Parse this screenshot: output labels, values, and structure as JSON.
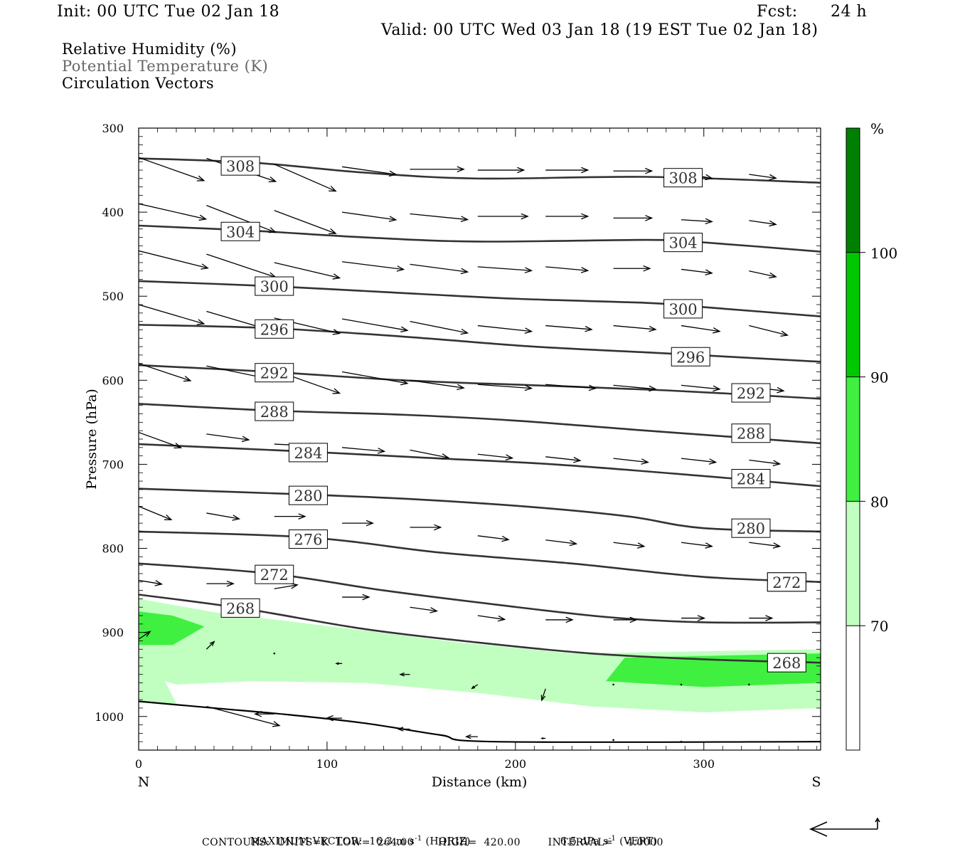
{
  "header": {
    "init": "Init: 00 UTC Tue 02 Jan 18",
    "fcst_label": "Fcst:",
    "fcst_value": "24 h",
    "valid": "Valid: 00 UTC Wed 03 Jan 18 (19 EST Tue 02 Jan 18)"
  },
  "fields": {
    "rh": "Relative Humidity (%)",
    "theta": "Potential Temperature (K)",
    "vectors": "Circulation Vectors"
  },
  "colors": {
    "contour": "#333333",
    "vector": "#000000",
    "rh_70": "#c0ffc0",
    "rh_80": "#40f040",
    "rh_90": "#00c800",
    "rh_100": "#008000"
  },
  "chart_data": {
    "type": "cross-section",
    "xlabel": "Distance (km)",
    "ylabel": "Pressure (hPa)",
    "xlim": [
      0,
      362
    ],
    "ylim": [
      1040,
      300
    ],
    "x_ticks": [
      "0",
      "100",
      "200",
      "300"
    ],
    "y_ticks": [
      "300",
      "400",
      "500",
      "600",
      "700",
      "800",
      "900",
      "1000"
    ],
    "left_end_label": "N",
    "right_end_label": "S",
    "terrain": [
      [
        0,
        982
      ],
      [
        40,
        990
      ],
      [
        80,
        998
      ],
      [
        120,
        1008
      ],
      [
        160,
        1022
      ],
      [
        190,
        1030
      ],
      [
        362,
        1030
      ]
    ],
    "theta_contours": [
      {
        "level": 308,
        "label": "308",
        "points": [
          [
            0,
            336
          ],
          [
            60,
            341
          ],
          [
            120,
            353
          ],
          [
            180,
            360
          ],
          [
            270,
            358
          ],
          [
            362,
            365
          ]
        ],
        "label_at": [
          [
            54,
            345
          ],
          [
            289,
            359
          ]
        ]
      },
      {
        "level": 304,
        "label": "304",
        "points": [
          [
            0,
            416
          ],
          [
            60,
            422
          ],
          [
            120,
            430
          ],
          [
            180,
            435
          ],
          [
            270,
            433
          ],
          [
            300,
            436
          ],
          [
            362,
            447
          ]
        ],
        "label_at": [
          [
            54,
            423
          ],
          [
            289,
            436
          ]
        ]
      },
      {
        "level": 300,
        "label": "300",
        "points": [
          [
            0,
            482
          ],
          [
            70,
            488
          ],
          [
            130,
            495
          ],
          [
            200,
            503
          ],
          [
            270,
            508
          ],
          [
            300,
            513
          ],
          [
            362,
            524
          ]
        ],
        "label_at": [
          [
            72,
            488
          ],
          [
            289,
            515
          ]
        ]
      },
      {
        "level": 296,
        "label": "296",
        "points": [
          [
            0,
            534
          ],
          [
            70,
            538
          ],
          [
            140,
            548
          ],
          [
            210,
            560
          ],
          [
            280,
            568
          ],
          [
            362,
            578
          ]
        ],
        "label_at": [
          [
            72,
            539
          ],
          [
            293,
            572
          ]
        ]
      },
      {
        "level": 292,
        "label": "292",
        "points": [
          [
            0,
            582
          ],
          [
            70,
            590
          ],
          [
            140,
            600
          ],
          [
            210,
            606
          ],
          [
            280,
            612
          ],
          [
            362,
            622
          ]
        ],
        "label_at": [
          [
            72,
            591
          ],
          [
            325,
            615
          ]
        ]
      },
      {
        "level": 288,
        "label": "288",
        "points": [
          [
            0,
            628
          ],
          [
            70,
            636
          ],
          [
            140,
            641
          ],
          [
            200,
            648
          ],
          [
            270,
            660
          ],
          [
            362,
            675
          ]
        ],
        "label_at": [
          [
            72,
            637
          ],
          [
            325,
            663
          ]
        ]
      },
      {
        "level": 284,
        "label": "284",
        "points": [
          [
            0,
            676
          ],
          [
            90,
            685
          ],
          [
            150,
            692
          ],
          [
            220,
            700
          ],
          [
            300,
            714
          ],
          [
            362,
            726
          ]
        ],
        "label_at": [
          [
            90,
            686
          ],
          [
            325,
            717
          ]
        ]
      },
      {
        "level": 280,
        "label": "280",
        "points": [
          [
            0,
            729
          ],
          [
            90,
            736
          ],
          [
            150,
            742
          ],
          [
            210,
            751
          ],
          [
            260,
            762
          ],
          [
            300,
            776
          ],
          [
            362,
            780
          ]
        ],
        "label_at": [
          [
            90,
            737
          ],
          [
            325,
            776
          ]
        ]
      },
      {
        "level": 276,
        "label": "276",
        "points": [
          [
            0,
            780
          ],
          [
            90,
            787
          ],
          [
            160,
            805
          ],
          [
            230,
            818
          ],
          [
            300,
            834
          ],
          [
            362,
            840
          ]
        ],
        "label_at": [
          [
            90,
            789
          ],
          [
            344,
            840
          ]
        ]
      },
      {
        "level": 272,
        "label": "272",
        "points": [
          [
            0,
            818
          ],
          [
            70,
            830
          ],
          [
            130,
            850
          ],
          [
            190,
            867
          ],
          [
            250,
            882
          ],
          [
            300,
            888
          ],
          [
            362,
            888
          ]
        ],
        "label_at": [
          [
            72,
            831
          ],
          [
            344,
            840
          ]
        ]
      },
      {
        "level": 268,
        "label": "268",
        "points": [
          [
            0,
            855
          ],
          [
            54,
            871
          ],
          [
            120,
            896
          ],
          [
            180,
            912
          ],
          [
            240,
            925
          ],
          [
            300,
            932
          ],
          [
            362,
            936
          ]
        ],
        "label_at": [
          [
            54,
            871
          ],
          [
            344,
            936
          ]
        ]
      }
    ],
    "rh_bands": [
      {
        "range": [
          70,
          80
        ],
        "color": "#c0ffc0"
      },
      {
        "range": [
          80,
          90
        ],
        "color": "#40f040"
      },
      {
        "range": [
          90,
          100
        ],
        "color": "#00c800"
      },
      {
        "range": [
          100,
          110
        ],
        "color": "#008000"
      }
    ],
    "rh_70_region": [
      [
        0,
        860
      ],
      [
        40,
        876
      ],
      [
        110,
        895
      ],
      [
        170,
        912
      ],
      [
        230,
        925
      ],
      [
        362,
        920
      ],
      [
        362,
        990
      ],
      [
        300,
        995
      ],
      [
        240,
        988
      ],
      [
        180,
        972
      ],
      [
        120,
        960
      ],
      [
        60,
        958
      ],
      [
        20,
        962
      ],
      [
        14,
        958
      ],
      [
        20,
        985
      ],
      [
        0,
        982
      ]
    ],
    "rh_80_regions": [
      [
        [
          0,
          875
        ],
        [
          18,
          880
        ],
        [
          35,
          893
        ],
        [
          18,
          915
        ],
        [
          0,
          915
        ]
      ],
      [
        [
          258,
          930
        ],
        [
          362,
          925
        ],
        [
          362,
          960
        ],
        [
          300,
          965
        ],
        [
          248,
          958
        ]
      ]
    ],
    "colorbar": {
      "unit": "%",
      "levels": [
        "70",
        "80",
        "90",
        "100"
      ]
    },
    "vectors": [
      {
        "x": 0,
        "p": 335,
        "dx": 34,
        "dp": 12
      },
      {
        "x": 36,
        "p": 336,
        "dx": 36,
        "dp": 12
      },
      {
        "x": 72,
        "p": 343,
        "dx": 32,
        "dp": 14
      },
      {
        "x": 108,
        "p": 346,
        "dx": 28,
        "dp": 4
      },
      {
        "x": 144,
        "p": 349,
        "dx": 28,
        "dp": 0
      },
      {
        "x": 180,
        "p": 350,
        "dx": 24,
        "dp": 0
      },
      {
        "x": 216,
        "p": 350,
        "dx": 22,
        "dp": 0
      },
      {
        "x": 252,
        "p": 351,
        "dx": 20,
        "dp": 0
      },
      {
        "x": 288,
        "p": 353,
        "dx": 16,
        "dp": 3
      },
      {
        "x": 324,
        "p": 355,
        "dx": 14,
        "dp": 2
      },
      {
        "x": 0,
        "p": 390,
        "dx": 35,
        "dp": 8
      },
      {
        "x": 36,
        "p": 392,
        "dx": 36,
        "dp": 14
      },
      {
        "x": 72,
        "p": 398,
        "dx": 32,
        "dp": 12
      },
      {
        "x": 108,
        "p": 400,
        "dx": 28,
        "dp": 4
      },
      {
        "x": 144,
        "p": 402,
        "dx": 30,
        "dp": 3
      },
      {
        "x": 180,
        "p": 405,
        "dx": 26,
        "dp": 0
      },
      {
        "x": 216,
        "p": 405,
        "dx": 22,
        "dp": 0
      },
      {
        "x": 252,
        "p": 407,
        "dx": 20,
        "dp": 0
      },
      {
        "x": 288,
        "p": 409,
        "dx": 16,
        "dp": 1
      },
      {
        "x": 324,
        "p": 410,
        "dx": 14,
        "dp": 2
      },
      {
        "x": 0,
        "p": 446,
        "dx": 36,
        "dp": 9
      },
      {
        "x": 36,
        "p": 450,
        "dx": 36,
        "dp": 12
      },
      {
        "x": 72,
        "p": 460,
        "dx": 34,
        "dp": 8
      },
      {
        "x": 108,
        "p": 459,
        "dx": 32,
        "dp": 4
      },
      {
        "x": 144,
        "p": 462,
        "dx": 30,
        "dp": 4
      },
      {
        "x": 180,
        "p": 465,
        "dx": 28,
        "dp": 2
      },
      {
        "x": 216,
        "p": 465,
        "dx": 22,
        "dp": 2
      },
      {
        "x": 252,
        "p": 467,
        "dx": 19,
        "dp": 0
      },
      {
        "x": 288,
        "p": 468,
        "dx": 16,
        "dp": 2
      },
      {
        "x": 324,
        "p": 470,
        "dx": 14,
        "dp": 3
      },
      {
        "x": 0,
        "p": 510,
        "dx": 34,
        "dp": 10
      },
      {
        "x": 36,
        "p": 518,
        "dx": 34,
        "dp": 10
      },
      {
        "x": 72,
        "p": 526,
        "dx": 34,
        "dp": 8
      },
      {
        "x": 108,
        "p": 527,
        "dx": 34,
        "dp": 6
      },
      {
        "x": 144,
        "p": 530,
        "dx": 30,
        "dp": 6
      },
      {
        "x": 180,
        "p": 535,
        "dx": 28,
        "dp": 3
      },
      {
        "x": 216,
        "p": 535,
        "dx": 24,
        "dp": 2
      },
      {
        "x": 252,
        "p": 535,
        "dx": 22,
        "dp": 2
      },
      {
        "x": 288,
        "p": 535,
        "dx": 20,
        "dp": 3
      },
      {
        "x": 324,
        "p": 535,
        "dx": 20,
        "dp": 5
      },
      {
        "x": 0,
        "p": 580,
        "dx": 27,
        "dp": 9
      },
      {
        "x": 36,
        "p": 583,
        "dx": 34,
        "dp": 7
      },
      {
        "x": 72,
        "p": 588,
        "dx": 34,
        "dp": 12
      },
      {
        "x": 108,
        "p": 590,
        "dx": 34,
        "dp": 6
      },
      {
        "x": 144,
        "p": 600,
        "dx": 28,
        "dp": 4
      },
      {
        "x": 180,
        "p": 605,
        "dx": 28,
        "dp": 2
      },
      {
        "x": 216,
        "p": 605,
        "dx": 26,
        "dp": 2
      },
      {
        "x": 252,
        "p": 606,
        "dx": 22,
        "dp": 2
      },
      {
        "x": 288,
        "p": 606,
        "dx": 20,
        "dp": 2
      },
      {
        "x": 324,
        "p": 608,
        "dx": 18,
        "dp": 2
      },
      {
        "x": 0,
        "p": 662,
        "dx": 22,
        "dp": 8
      },
      {
        "x": 36,
        "p": 664,
        "dx": 22,
        "dp": 3
      },
      {
        "x": 72,
        "p": 676,
        "dx": 22,
        "dp": 1
      },
      {
        "x": 108,
        "p": 680,
        "dx": 22,
        "dp": 2
      },
      {
        "x": 144,
        "p": 683,
        "dx": 20,
        "dp": 4
      },
      {
        "x": 180,
        "p": 688,
        "dx": 18,
        "dp": 2
      },
      {
        "x": 216,
        "p": 691,
        "dx": 18,
        "dp": 2
      },
      {
        "x": 252,
        "p": 693,
        "dx": 18,
        "dp": 2
      },
      {
        "x": 288,
        "p": 693,
        "dx": 18,
        "dp": 2
      },
      {
        "x": 324,
        "p": 695,
        "dx": 16,
        "dp": 2
      },
      {
        "x": 0,
        "p": 750,
        "dx": 17,
        "dp": 7
      },
      {
        "x": 36,
        "p": 758,
        "dx": 17,
        "dp": 3
      },
      {
        "x": 72,
        "p": 762,
        "dx": 16,
        "dp": 0
      },
      {
        "x": 108,
        "p": 770,
        "dx": 16,
        "dp": 0
      },
      {
        "x": 144,
        "p": 775,
        "dx": 16,
        "dp": 0
      },
      {
        "x": 180,
        "p": 785,
        "dx": 16,
        "dp": 2
      },
      {
        "x": 216,
        "p": 790,
        "dx": 16,
        "dp": 2
      },
      {
        "x": 252,
        "p": 793,
        "dx": 16,
        "dp": 2
      },
      {
        "x": 288,
        "p": 793,
        "dx": 16,
        "dp": 2
      },
      {
        "x": 324,
        "p": 793,
        "dx": 16,
        "dp": 2
      },
      {
        "x": 0,
        "p": 838,
        "dx": 12,
        "dp": 2
      },
      {
        "x": 36,
        "p": 842,
        "dx": 14,
        "dp": 0
      },
      {
        "x": 72,
        "p": 848,
        "dx": 12,
        "dp": -2
      },
      {
        "x": 108,
        "p": 858,
        "dx": 14,
        "dp": 0
      },
      {
        "x": 144,
        "p": 870,
        "dx": 14,
        "dp": 2
      },
      {
        "x": 180,
        "p": 880,
        "dx": 14,
        "dp": 2
      },
      {
        "x": 216,
        "p": 885,
        "dx": 14,
        "dp": 0
      },
      {
        "x": 252,
        "p": 885,
        "dx": 12,
        "dp": 0
      },
      {
        "x": 288,
        "p": 883,
        "dx": 12,
        "dp": 0
      },
      {
        "x": 324,
        "p": 883,
        "dx": 12,
        "dp": 0
      },
      {
        "x": 0,
        "p": 908,
        "dx": 6,
        "dp": -4
      },
      {
        "x": 36,
        "p": 920,
        "dx": 4,
        "dp": -4
      },
      {
        "x": 72,
        "p": 925,
        "dx": 0,
        "dp": 0
      },
      {
        "x": 108,
        "p": 937,
        "dx": -3,
        "dp": 0
      },
      {
        "x": 144,
        "p": 950,
        "dx": -5,
        "dp": 0
      },
      {
        "x": 180,
        "p": 962,
        "dx": -3,
        "dp": 2
      },
      {
        "x": 216,
        "p": 967,
        "dx": -2,
        "dp": 6
      },
      {
        "x": 252,
        "p": 962,
        "dx": 0,
        "dp": 0
      },
      {
        "x": 288,
        "p": 962,
        "dx": 0,
        "dp": 0
      },
      {
        "x": 324,
        "p": 962,
        "dx": 0,
        "dp": 0
      },
      {
        "x": 36,
        "p": 988,
        "dx": 38,
        "dp": 10
      },
      {
        "x": 72,
        "p": 997,
        "dx": -10,
        "dp": 0
      },
      {
        "x": 108,
        "p": 1002,
        "dx": -8,
        "dp": 0
      },
      {
        "x": 144,
        "p": 1015,
        "dx": -6,
        "dp": 0
      },
      {
        "x": 180,
        "p": 1024,
        "dx": -6,
        "dp": 0
      },
      {
        "x": 216,
        "p": 1026,
        "dx": -2,
        "dp": 0
      },
      {
        "x": 252,
        "p": 1028,
        "dx": 0,
        "dp": 0
      },
      {
        "x": 288,
        "p": 1030,
        "dx": 0,
        "dp": 0
      }
    ]
  },
  "footer": {
    "max_vector_prefix": "MAXIMUM VECTOR:",
    "horiz_value": "16.3 m s",
    "horiz_exp": "-1",
    "horiz_tag": "(HORIZ)",
    "vert_value": "6.5 dPa s",
    "vert_exp": "-1",
    "vert_tag": "(VERT)",
    "contours_line": "CONTOURS:  UNITS=K  LOW=  264.00       HIGH=  420.00        INTERVAL=    4.0000"
  }
}
